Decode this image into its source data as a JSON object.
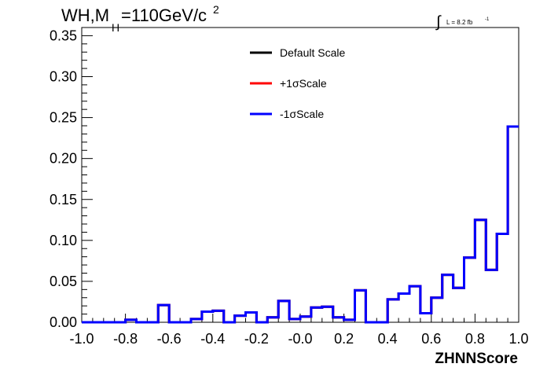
{
  "chart_data": {
    "type": "step",
    "title": {
      "main": "WH,M",
      "sub": "H",
      "rest": "=110GeV/c",
      "sup": "2"
    },
    "luminosity": {
      "symbol": "∫",
      "text": "L = 8.2 fb",
      "sup": "-1"
    },
    "xlabel": "ZHNNScore",
    "ylabel": "",
    "xlim": [
      -1.0,
      1.0
    ],
    "ylim": [
      0.0,
      0.36
    ],
    "x_ticks": [
      "-1.0",
      "-0.8",
      "-0.6",
      "-0.4",
      "-0.2",
      "-0.0",
      "0.2",
      "0.4",
      "0.6",
      "0.8",
      "1.0"
    ],
    "y_ticks": [
      "0.00",
      "0.05",
      "0.10",
      "0.15",
      "0.20",
      "0.25",
      "0.30",
      "0.35"
    ],
    "bin_edges": [
      -1.0,
      0.95
    ],
    "bin_width": 0.05,
    "legend_position": "top-center",
    "series": [
      {
        "name": "Default Scale",
        "color": "#000000",
        "values": [
          0.0,
          0.0,
          0.0,
          0.0,
          0.003,
          0.0,
          0.0,
          0.021,
          0.0,
          0.0,
          0.004,
          0.013,
          0.014,
          0.0,
          0.008,
          0.012,
          0.0,
          0.006,
          0.026,
          0.004,
          0.007,
          0.018,
          0.019,
          0.006,
          0.003,
          0.039,
          0.0,
          0.0,
          0.028,
          0.035,
          0.044,
          0.011,
          0.03,
          0.058,
          0.042,
          0.079,
          0.125,
          0.064,
          0.108,
          0.239
        ]
      },
      {
        "name": "+1σScale",
        "color": "#ff0000",
        "values": [
          0.0,
          0.0,
          0.0,
          0.0,
          0.003,
          0.0,
          0.0,
          0.021,
          0.0,
          0.0,
          0.004,
          0.013,
          0.014,
          0.0,
          0.008,
          0.012,
          0.0,
          0.006,
          0.026,
          0.004,
          0.007,
          0.018,
          0.019,
          0.006,
          0.003,
          0.039,
          0.0,
          0.0,
          0.028,
          0.035,
          0.044,
          0.011,
          0.03,
          0.058,
          0.042,
          0.079,
          0.125,
          0.064,
          0.108,
          0.239
        ]
      },
      {
        "name": "-1σScale",
        "color": "#0000ff",
        "values": [
          0.0,
          0.0,
          0.0,
          0.0,
          0.003,
          0.0,
          0.0,
          0.021,
          0.0,
          0.0,
          0.004,
          0.013,
          0.014,
          0.0,
          0.008,
          0.012,
          0.0,
          0.006,
          0.026,
          0.004,
          0.007,
          0.018,
          0.019,
          0.006,
          0.003,
          0.039,
          0.0,
          0.0,
          0.028,
          0.035,
          0.044,
          0.011,
          0.03,
          0.058,
          0.042,
          0.079,
          0.125,
          0.064,
          0.108,
          0.239
        ]
      }
    ]
  }
}
